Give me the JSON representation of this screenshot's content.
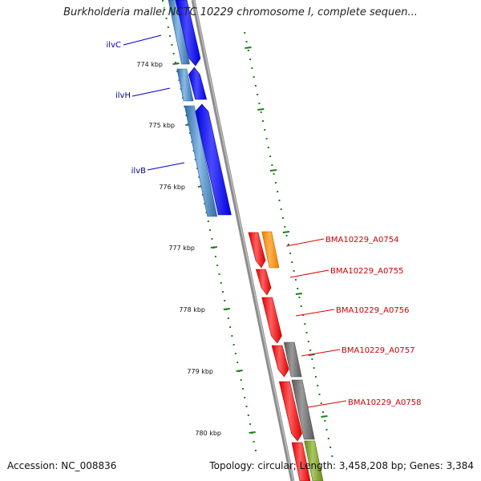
{
  "title": "Burkholderia mallei NCTC 10229 chromosome I, complete sequen...",
  "kbp_labels": [
    "774 kbp",
    "775 kbp",
    "776 kbp",
    "777 kbp",
    "778 kbp",
    "779 kbp",
    "780 kbp"
  ],
  "gene_labels": [
    {
      "text": "ilvC",
      "color": "#00008b"
    },
    {
      "text": "ilvH",
      "color": "#00008b"
    },
    {
      "text": "ilvB",
      "color": "#00008b"
    },
    {
      "text": "BMA10229_A0754",
      "color": "#cc0000"
    },
    {
      "text": "BMA10229_A0755",
      "color": "#cc0000"
    },
    {
      "text": "BMA10229_A0756",
      "color": "#cc0000"
    },
    {
      "text": "BMA10229_A0757",
      "color": "#cc0000"
    },
    {
      "text": "BMA10229_A0758",
      "color": "#cc0000"
    }
  ],
  "colors": {
    "backbone": "#8c8c8c",
    "forward_cds": "#0000ee",
    "forward_cds_light": "#4444ff",
    "reverse_cds": "#3d7ab5",
    "reverse_cds_light": "#7fb0dd",
    "red_cds": "#ee0000",
    "red_cds_light": "#ff5050",
    "orange_cds": "#ff8c00",
    "gray_cds": "#6e6e6e",
    "green_cds": "#7a9a2a",
    "tick": "#1a7f1a"
  },
  "footer": {
    "accession": "Accession: NC_008836",
    "stats": "Topology: circular; Length: 3,458,208 bp; Genes: 3,384"
  }
}
